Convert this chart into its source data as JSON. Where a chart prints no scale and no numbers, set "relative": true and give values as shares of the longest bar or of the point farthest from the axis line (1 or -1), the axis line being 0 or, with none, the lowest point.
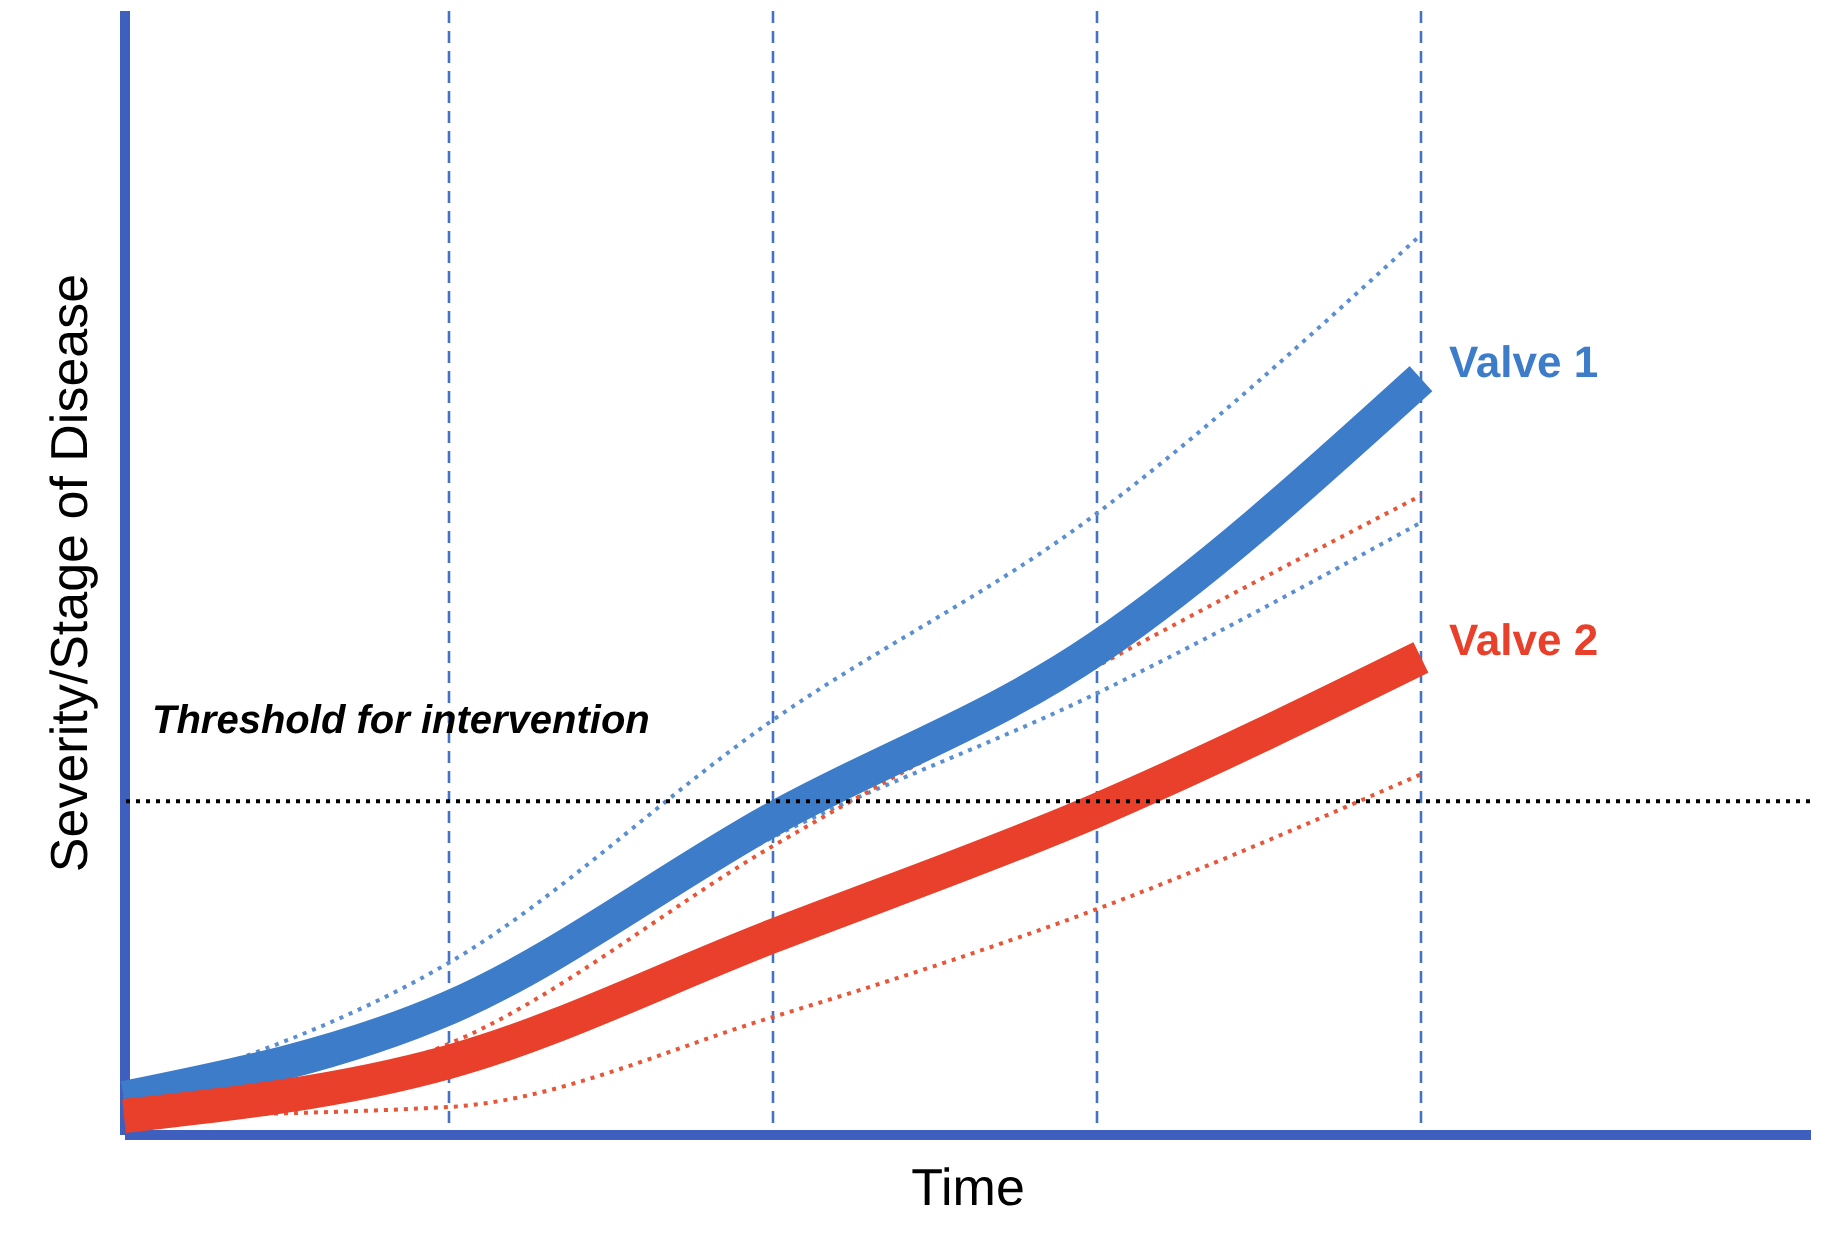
{
  "chart_data": {
    "type": "line",
    "relative": true,
    "xlabel": "Time",
    "ylabel": "Severity/Stage of Disease",
    "categories": [
      null,
      null,
      null,
      null,
      null
    ],
    "grid": "x",
    "series": [
      {
        "color": "#5b8fd0",
        "line_style": "dotted",
        "values": [
          0.04,
          0.19,
          0.46,
          0.69,
          1.0
        ]
      },
      {
        "color": "#5b8fd0",
        "line_style": "dotted",
        "values": [
          0.04,
          0.13,
          0.33,
          0.49,
          0.68
        ]
      },
      {
        "color": "#e8563a",
        "line_style": "dotted",
        "values": [
          0.02,
          0.1,
          0.32,
          0.52,
          0.71
        ]
      },
      {
        "color": "#e8563a",
        "line_style": "dotted",
        "values": [
          0.02,
          0.03,
          0.13,
          0.25,
          0.4
        ]
      },
      {
        "name": "Valve 1",
        "color": "#3d7cc9",
        "line_style": "solid",
        "values": [
          0.04,
          0.14,
          0.35,
          0.54,
          0.84
        ]
      },
      {
        "name": "Valve 2",
        "color": "#e8402a",
        "line_style": "solid",
        "values": [
          0.02,
          0.08,
          0.22,
          0.36,
          0.53
        ]
      }
    ],
    "ref_lines": [
      {
        "axis": "y",
        "value": 0.37,
        "label": "Threshold for intervention",
        "color": "#000000",
        "line_style": "dotted"
      }
    ]
  }
}
